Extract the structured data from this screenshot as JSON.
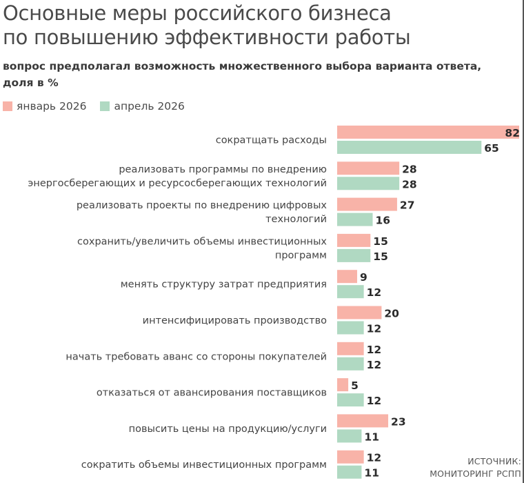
{
  "title_line1": "Основные меры российского бизнеса",
  "title_line2": "по повышению эффективности работы",
  "subtitle_line1": "вопрос предполагал возможность множественного выбора варианта ответа,",
  "subtitle_line2": "доля в %",
  "source_line1": "ИСТОЧНИК:",
  "source_line2": "МОНИТОРИНГ РСПП",
  "colors": {
    "series1": "#f8b3a8",
    "series2": "#b0d9c2"
  },
  "chart_data": {
    "type": "bar",
    "orientation": "horizontal",
    "categories": [
      [
        "сократщать расходы"
      ],
      [
        "реализовать программы по внедрению",
        "энергосберегающих и ресурсосберегающих технологий"
      ],
      [
        "реализовать проекты по внедрению цифровых",
        "технологий"
      ],
      [
        "сохранить/увеличить объемы инвестиционных",
        "программ"
      ],
      [
        "менять структуру затрат предприятия"
      ],
      [
        "интенсифицировать производство"
      ],
      [
        "начать требовать аванс со стороны покупателей"
      ],
      [
        "отказаться от авансирования поставщиков"
      ],
      [
        "повысить цены на продукцию/услуги"
      ],
      [
        "сократить объемы инвестиционных программ"
      ]
    ],
    "series": [
      {
        "name": "январь 2026",
        "values": [
          82,
          28,
          27,
          15,
          9,
          20,
          12,
          5,
          23,
          12
        ]
      },
      {
        "name": "апрель 2026",
        "values": [
          65,
          28,
          16,
          15,
          12,
          12,
          12,
          12,
          11,
          11
        ]
      }
    ],
    "xlim": [
      0,
      82
    ],
    "legend": "top-left",
    "grid": false,
    "data_labels": true
  }
}
